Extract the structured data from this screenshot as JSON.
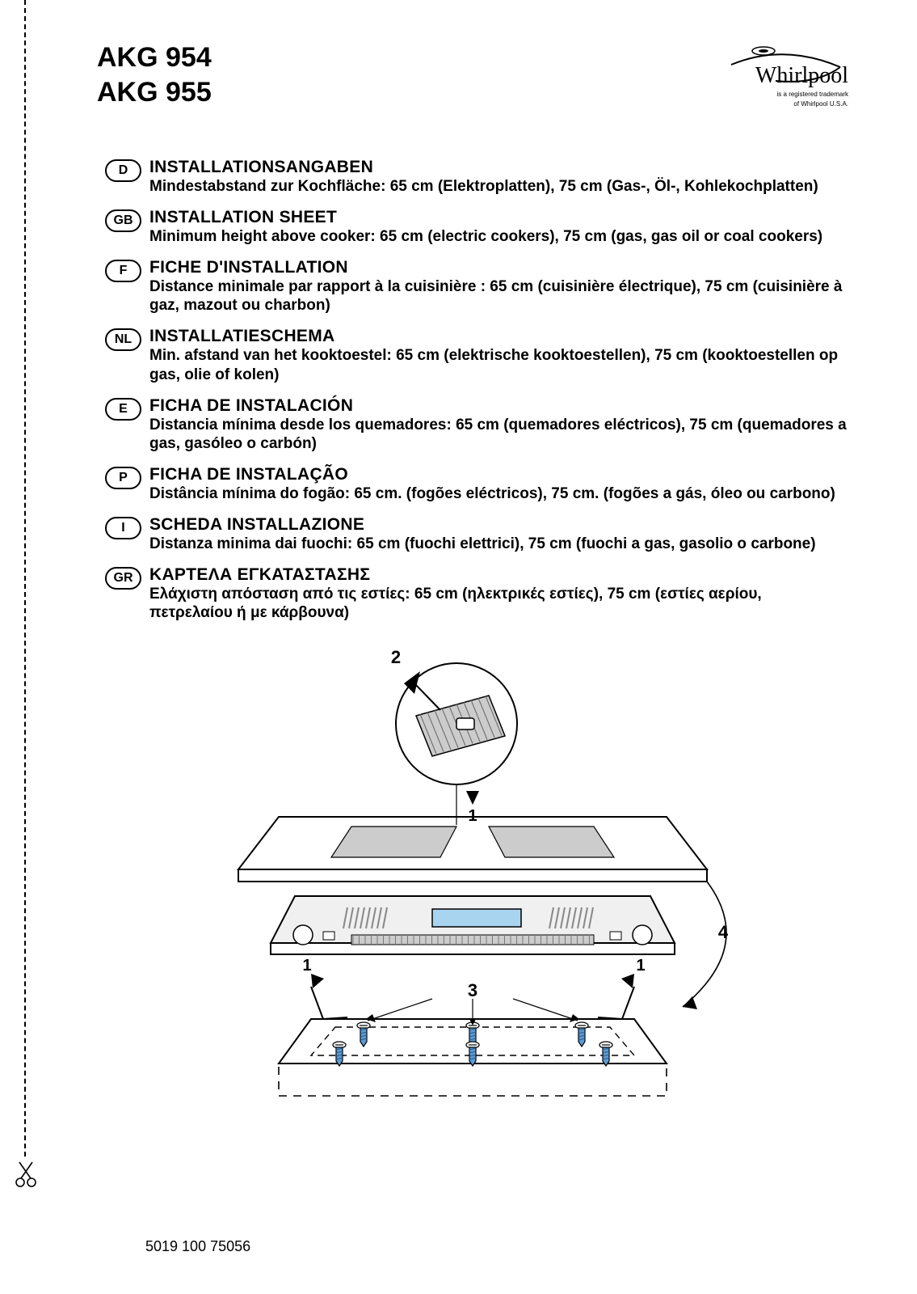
{
  "header": {
    "model1": "AKG 954",
    "model2": "AKG 955",
    "logo_text": "Whirlpool",
    "trademark_line1": "is a registered trademark",
    "trademark_line2": "of Whirlpool U.S.A."
  },
  "languages": [
    {
      "code": "D",
      "title": "INSTALLATIONSANGABEN",
      "body": "Mindestabstand zur Kochfläche: 65 cm (Elektroplatten), 75 cm (Gas-, Öl-, Kohlekochplatten)"
    },
    {
      "code": "GB",
      "title": "INSTALLATION SHEET",
      "body": "Minimum height above cooker: 65 cm (electric cookers), 75 cm (gas, gas oil or coal cookers)"
    },
    {
      "code": "F",
      "title": "FICHE D'INSTALLATION",
      "body": "Distance minimale par rapport à la cuisinière : 65 cm (cuisinière électrique), 75 cm (cuisinière à gaz, mazout ou charbon)"
    },
    {
      "code": "NL",
      "title": "INSTALLATIESCHEMA",
      "body": "Min. afstand van het kooktoestel: 65 cm (elektrische kooktoestellen), 75 cm (kooktoestellen op gas, olie of kolen)"
    },
    {
      "code": "E",
      "title": "FICHA DE INSTALACIÓN",
      "body": "Distancia mínima desde los quemadores: 65 cm (quemadores eléctricos), 75 cm (quemadores a gas, gasóleo o carbón)"
    },
    {
      "code": "P",
      "title": "FICHA DE INSTALAÇÃO",
      "body": "Distância mínima do fogão: 65 cm. (fogões eléctricos), 75 cm. (fogões a gás, óleo ou carbono)"
    },
    {
      "code": "I",
      "title": "SCHEDA INSTALLAZIONE",
      "body": "Distanza minima dai fuochi: 65 cm (fuochi elettrici), 75 cm (fuochi a gas, gasolio o carbone)"
    },
    {
      "code": "GR",
      "title": "ΚΑΡΤΕΛΑ ΕΓΚΑΤΑΣΤΑΣΗΣ",
      "body": "Ελάχιστη απόσταση από τις εστίες: 65 cm (ηλεκτρικές εστίες), 75 cm (εστίες αερίου, πετρελαίου ή με κάρβουνα)"
    }
  ],
  "figure": {
    "labels": {
      "n1": "1",
      "n2": "2",
      "n3": "3",
      "n4": "4"
    },
    "colors": {
      "stroke": "#000000",
      "panel_fill": "#f0f0f0",
      "display_fill": "#a9d4f0",
      "grille_fill": "#cccccc",
      "screw_fill": "#5b9bd5"
    }
  },
  "footer": {
    "partno": "5019 100 75056"
  }
}
